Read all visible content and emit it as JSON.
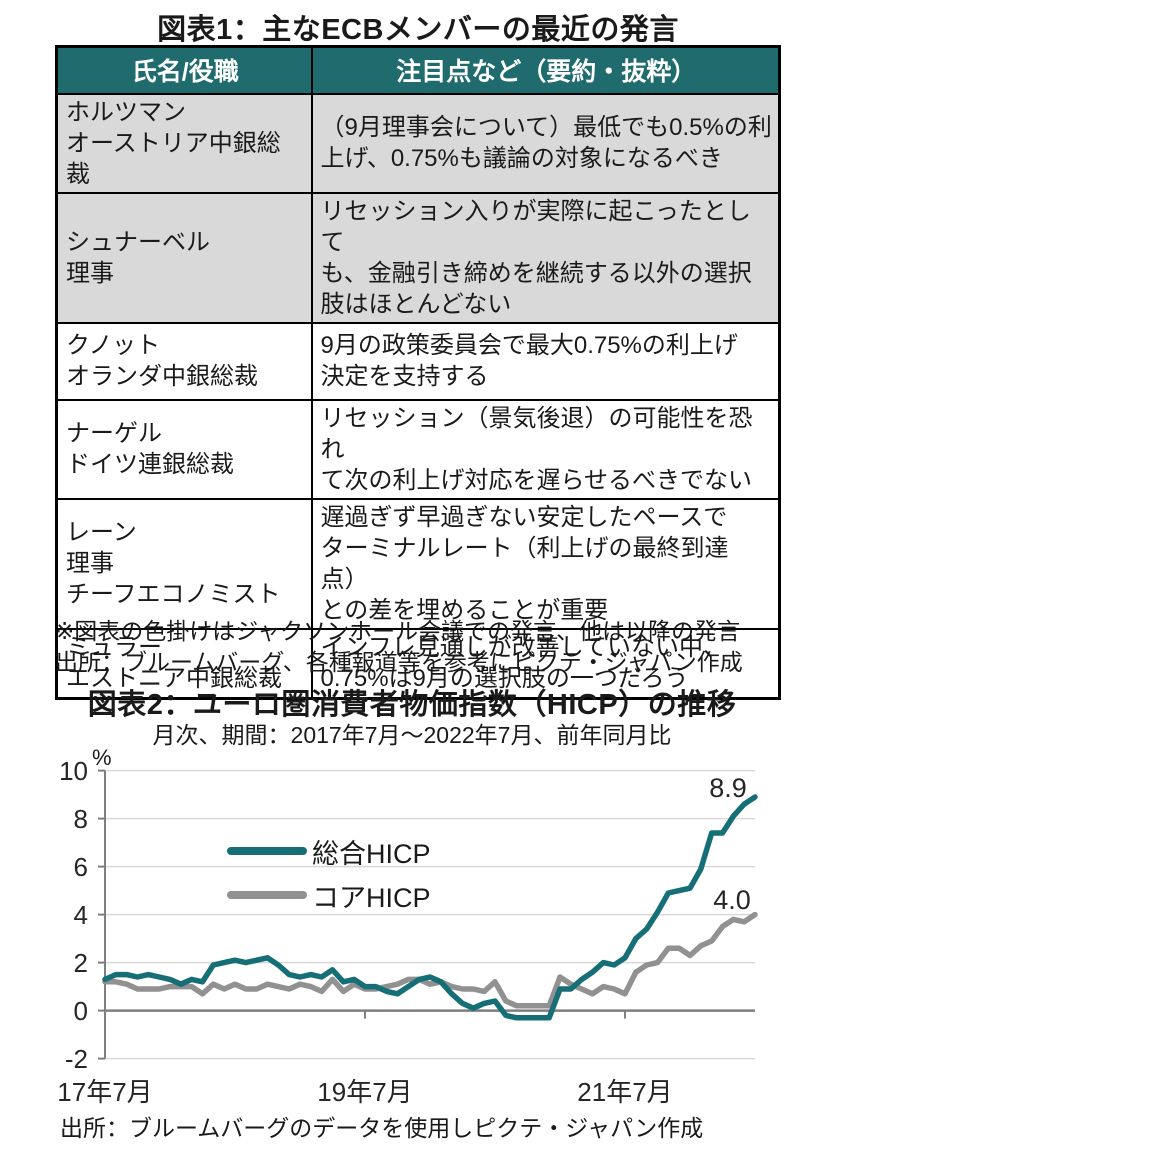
{
  "fig1": {
    "title": "図表1：主なECBメンバーの最近の発言",
    "table": {
      "headers": [
        "氏名/役職",
        "注目点など（要約・抜粋）"
      ],
      "rows": [
        {
          "name": "ホルツマン\nオーストリア中銀総裁",
          "statement": "（9月理事会について）最低でも0.5%の利\n上げ、0.75%も議論の対象になるべき",
          "highlighted": true
        },
        {
          "name": "シュナーベル\n理事",
          "statement": "リセッション入りが実際に起こったとして\nも、金融引き締めを継続する以外の選択\n肢はほとんどない",
          "highlighted": true
        },
        {
          "name": "クノット\nオランダ中銀総裁",
          "statement": "9月の政策委員会で最大0.75%の利上げ\n決定を支持する",
          "highlighted": false
        },
        {
          "name": "ナーゲル\nドイツ連銀総裁",
          "statement": "リセッション（景気後退）の可能性を恐れ\nて次の利上げ対応を遅らせるべきでない",
          "highlighted": false
        },
        {
          "name": "レーン\n理事\nチーフエコノミスト",
          "statement": "遅過ぎず早過ぎない安定したペースで\nターミナルレート（利上げの最終到達点）\nとの差を埋めることが重要",
          "highlighted": false
        },
        {
          "name": "ミュラー\nエストニア中銀総裁",
          "statement": "インフレ見通しが改善していない中、\n0.75%は9月の選択肢の一つだろう",
          "highlighted": false
        }
      ]
    },
    "note": "※図表の色掛けはジャクソンホール会議での発言、他は以降の発言",
    "source": "出所：ブルームバーグ、各種報道等を参考にピクテ・ジャパン作成",
    "colors": {
      "header_bg": "#1f6b6d",
      "header_text": "#ffffff",
      "row_shading": "#d9d9d9"
    }
  },
  "fig2": {
    "title": "図表2：ユーロ圏消費者物価指数（HICP）の推移",
    "subtitle": "月次、期間：2017年7月～2022年7月、前年同月比",
    "unit": "%",
    "source": "出所：ブルームバーグのデータを使用しピクテ・ジャパン作成"
  },
  "chart_data": {
    "type": "line",
    "title": "図表2：ユーロ圏消費者物価指数（HICP）の推移",
    "subtitle": "月次、期間：2017年7月～2022年7月、前年同月比",
    "ylabel": "%",
    "ylim": [
      -2,
      10
    ],
    "yticks": [
      10,
      8,
      6,
      4,
      2,
      0,
      -2
    ],
    "x_start": "2017-07",
    "x_end": "2022-07",
    "frequency": "monthly",
    "n_points": 61,
    "xticks": [
      {
        "month_index": 0,
        "label": "17年7月"
      },
      {
        "month_index": 24,
        "label": "19年7月"
      },
      {
        "month_index": 48,
        "label": "21年7月"
      }
    ],
    "grid": "horizontal",
    "legend_position": "upper-left-inside",
    "colors": {
      "grid": "#d9d9d9",
      "axis": "#7f7f7f"
    },
    "series": [
      {
        "key": "headline_hicp",
        "name": "総合HICP",
        "color": "#166f76",
        "end_label": "8.9",
        "values": [
          1.3,
          1.5,
          1.5,
          1.4,
          1.5,
          1.4,
          1.3,
          1.1,
          1.3,
          1.2,
          1.9,
          2.0,
          2.1,
          2.0,
          2.1,
          2.2,
          1.9,
          1.5,
          1.4,
          1.5,
          1.4,
          1.7,
          1.2,
          1.3,
          1.0,
          1.0,
          0.8,
          0.7,
          1.0,
          1.3,
          1.4,
          1.2,
          0.7,
          0.3,
          0.1,
          0.3,
          0.4,
          -0.2,
          -0.3,
          -0.3,
          -0.3,
          -0.3,
          0.9,
          0.9,
          1.3,
          1.6,
          2.0,
          1.9,
          2.2,
          3.0,
          3.4,
          4.1,
          4.9,
          5.0,
          5.1,
          5.9,
          7.4,
          7.4,
          8.1,
          8.6,
          8.9
        ]
      },
      {
        "key": "core_hicp",
        "name": "コアHICP",
        "color": "#919191",
        "end_label": "4.0",
        "values": [
          1.2,
          1.2,
          1.1,
          0.9,
          0.9,
          0.9,
          1.0,
          1.0,
          1.0,
          0.7,
          1.1,
          0.9,
          1.1,
          0.9,
          0.9,
          1.1,
          1.0,
          0.9,
          1.1,
          1.0,
          0.8,
          1.3,
          0.8,
          1.1,
          0.9,
          0.9,
          1.0,
          1.1,
          1.3,
          1.3,
          1.1,
          1.2,
          1.0,
          0.9,
          0.9,
          0.8,
          1.2,
          0.4,
          0.2,
          0.2,
          0.2,
          0.2,
          1.4,
          1.1,
          0.9,
          0.7,
          1.0,
          0.9,
          0.7,
          1.6,
          1.9,
          2.0,
          2.6,
          2.6,
          2.3,
          2.7,
          2.9,
          3.5,
          3.8,
          3.7,
          4.0
        ]
      }
    ]
  }
}
